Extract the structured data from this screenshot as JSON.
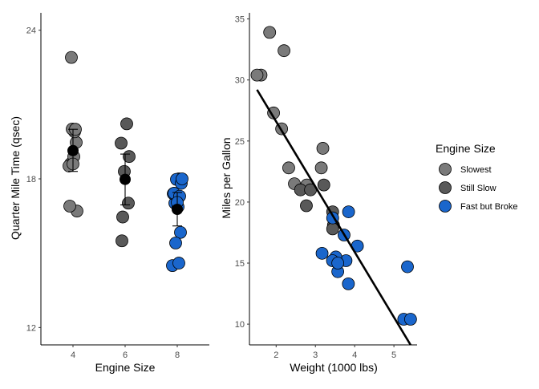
{
  "colors": {
    "Slowest": "#7a7a7a",
    "Still Slow": "#595959",
    "Fast but Broke": "#1a66cc",
    "mean_point": "#000000",
    "fit_line": "#000000",
    "axis": "#000000"
  },
  "legend": {
    "title": "Engine Size",
    "items": [
      {
        "label": "Slowest",
        "key": "Slowest"
      },
      {
        "label": "Still Slow",
        "key": "Still Slow"
      },
      {
        "label": "Fast but Broke",
        "key": "Fast but Broke"
      }
    ]
  },
  "chart_data": [
    {
      "type": "scatter",
      "title": "",
      "xlabel": "Engine Size",
      "ylabel": "Quarter Mile Time (qsec)",
      "categories": [
        "4",
        "6",
        "8"
      ],
      "ylim": [
        11.3,
        24.7
      ],
      "yticks": [
        12,
        18,
        24
      ],
      "grid": false,
      "series": [
        {
          "group": "Slowest",
          "category": "4",
          "values": [
            18.61,
            19.47,
            18.52,
            19.9,
            20.01,
            16.7,
            16.9,
            18.9,
            20.0,
            22.9,
            18.6
          ]
        },
        {
          "group": "Still Slow",
          "category": "6",
          "values": [
            16.46,
            17.02,
            19.44,
            20.22,
            18.3,
            18.9,
            15.5
          ]
        },
        {
          "group": "Fast but Broke",
          "category": "8",
          "values": [
            17.02,
            15.84,
            17.4,
            18.0,
            17.98,
            17.82,
            17.42,
            16.87,
            17.3,
            15.41,
            17.05,
            18.0,
            14.5,
            14.6
          ]
        }
      ],
      "summary": [
        {
          "category": "4",
          "mean": 19.14,
          "low": 18.3,
          "high": 20.0
        },
        {
          "category": "6",
          "mean": 17.98,
          "low": 16.95,
          "high": 19.0
        },
        {
          "category": "8",
          "mean": 16.77,
          "low": 16.1,
          "high": 17.45
        }
      ]
    },
    {
      "type": "scatter",
      "title": "",
      "xlabel": "Weight (1000 lbs)",
      "ylabel": "Miles per Gallon",
      "xlim": [
        1.32,
        5.59
      ],
      "ylim": [
        8.3,
        35.5
      ],
      "xticks": [
        2,
        3,
        4,
        5
      ],
      "yticks": [
        10,
        15,
        20,
        25,
        30,
        35
      ],
      "grid": false,
      "points": [
        {
          "x": 2.32,
          "y": 22.8,
          "group": "Slowest"
        },
        {
          "x": 3.19,
          "y": 24.4,
          "group": "Slowest"
        },
        {
          "x": 3.15,
          "y": 22.8,
          "group": "Slowest"
        },
        {
          "x": 2.2,
          "y": 32.4,
          "group": "Slowest"
        },
        {
          "x": 1.615,
          "y": 30.4,
          "group": "Slowest"
        },
        {
          "x": 1.835,
          "y": 33.9,
          "group": "Slowest"
        },
        {
          "x": 2.465,
          "y": 21.5,
          "group": "Slowest"
        },
        {
          "x": 1.935,
          "y": 27.3,
          "group": "Slowest"
        },
        {
          "x": 2.14,
          "y": 26.0,
          "group": "Slowest"
        },
        {
          "x": 1.513,
          "y": 30.4,
          "group": "Slowest"
        },
        {
          "x": 2.78,
          "y": 21.4,
          "group": "Slowest"
        },
        {
          "x": 2.62,
          "y": 21.0,
          "group": "Still Slow"
        },
        {
          "x": 2.875,
          "y": 21.0,
          "group": "Still Slow"
        },
        {
          "x": 3.215,
          "y": 21.4,
          "group": "Still Slow"
        },
        {
          "x": 3.46,
          "y": 18.1,
          "group": "Still Slow"
        },
        {
          "x": 3.44,
          "y": 19.2,
          "group": "Still Slow"
        },
        {
          "x": 3.44,
          "y": 17.8,
          "group": "Still Slow"
        },
        {
          "x": 2.77,
          "y": 19.7,
          "group": "Still Slow"
        },
        {
          "x": 3.44,
          "y": 18.7,
          "group": "Fast but Broke"
        },
        {
          "x": 3.57,
          "y": 14.3,
          "group": "Fast but Broke"
        },
        {
          "x": 4.07,
          "y": 16.4,
          "group": "Fast but Broke"
        },
        {
          "x": 3.73,
          "y": 17.3,
          "group": "Fast but Broke"
        },
        {
          "x": 3.78,
          "y": 15.2,
          "group": "Fast but Broke"
        },
        {
          "x": 5.25,
          "y": 10.4,
          "group": "Fast but Broke"
        },
        {
          "x": 5.424,
          "y": 10.4,
          "group": "Fast but Broke"
        },
        {
          "x": 5.345,
          "y": 14.7,
          "group": "Fast but Broke"
        },
        {
          "x": 3.52,
          "y": 15.5,
          "group": "Fast but Broke"
        },
        {
          "x": 3.435,
          "y": 15.2,
          "group": "Fast but Broke"
        },
        {
          "x": 3.84,
          "y": 13.3,
          "group": "Fast but Broke"
        },
        {
          "x": 3.845,
          "y": 19.2,
          "group": "Fast but Broke"
        },
        {
          "x": 3.17,
          "y": 15.8,
          "group": "Fast but Broke"
        },
        {
          "x": 3.57,
          "y": 15.0,
          "group": "Fast but Broke"
        }
      ],
      "fit_line": {
        "x": [
          1.513,
          5.424
        ],
        "y": [
          29.2,
          8.3
        ]
      }
    }
  ]
}
